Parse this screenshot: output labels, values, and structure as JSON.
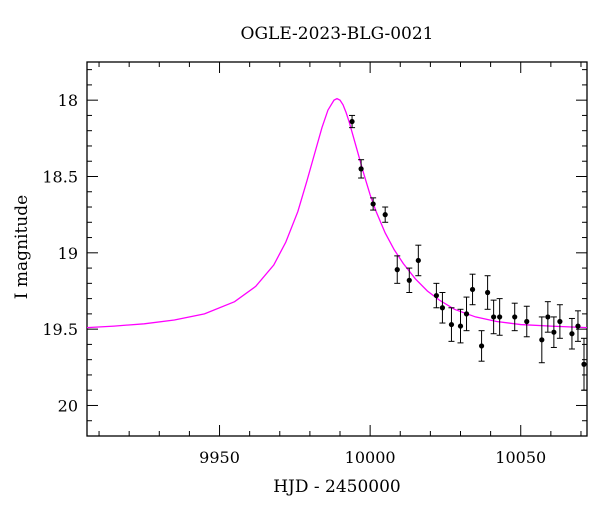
{
  "chart_data": {
    "type": "scatter",
    "title": "OGLE-2023-BLG-0021",
    "xlabel": "HJD - 2450000",
    "ylabel": "I magnitude",
    "xlim": [
      9906,
      10072
    ],
    "ylim": [
      20.2,
      17.75
    ],
    "y_inverted": true,
    "x_ticks": [
      9950,
      10000,
      10050
    ],
    "y_ticks": [
      18,
      18.5,
      19,
      19.5,
      20
    ],
    "grid": false,
    "legend": "none",
    "colors": {
      "model": "#ff00ff",
      "points": "#000000"
    },
    "model": {
      "type": "microlensing-fit",
      "x": [
        9906,
        9915,
        9925,
        9935,
        9945,
        9955,
        9962,
        9968,
        9972,
        9976,
        9979,
        9982,
        9984,
        9986,
        9988,
        9989,
        9990,
        9991,
        9992,
        9993,
        9994,
        9996,
        9998,
        10000,
        10002,
        10005,
        10008,
        10011,
        10015,
        10019,
        10023,
        10028,
        10035,
        10042,
        10050,
        10060,
        10072
      ],
      "y": [
        19.49,
        19.48,
        19.465,
        19.44,
        19.4,
        19.32,
        19.22,
        19.08,
        18.93,
        18.73,
        18.53,
        18.32,
        18.18,
        18.065,
        18.0,
        17.99,
        18.0,
        18.03,
        18.08,
        18.14,
        18.21,
        18.35,
        18.49,
        18.62,
        18.73,
        18.87,
        18.98,
        19.07,
        19.17,
        19.25,
        19.31,
        19.37,
        19.42,
        19.45,
        19.47,
        19.48,
        19.49
      ]
    },
    "series": [
      {
        "x": [
          9994,
          9997,
          10001,
          10005,
          10009,
          10013,
          10016,
          10022,
          10024,
          10027,
          10030,
          10032,
          10034,
          10037,
          10039,
          10041,
          10043,
          10048,
          10052,
          10057,
          10059,
          10061,
          10063,
          10067,
          10069,
          10071
        ],
        "y": [
          18.14,
          18.45,
          18.68,
          18.75,
          19.11,
          19.18,
          19.05,
          19.28,
          19.36,
          19.47,
          19.48,
          19.4,
          19.24,
          19.61,
          19.26,
          19.42,
          19.42,
          19.42,
          19.45,
          19.57,
          19.42,
          19.52,
          19.45,
          19.53,
          19.48,
          19.73
        ],
        "err": [
          0.04,
          0.06,
          0.04,
          0.05,
          0.09,
          0.08,
          0.1,
          0.08,
          0.1,
          0.11,
          0.11,
          0.11,
          0.1,
          0.1,
          0.11,
          0.11,
          0.12,
          0.09,
          0.1,
          0.15,
          0.1,
          0.1,
          0.11,
          0.1,
          0.1,
          0.17
        ]
      }
    ]
  }
}
